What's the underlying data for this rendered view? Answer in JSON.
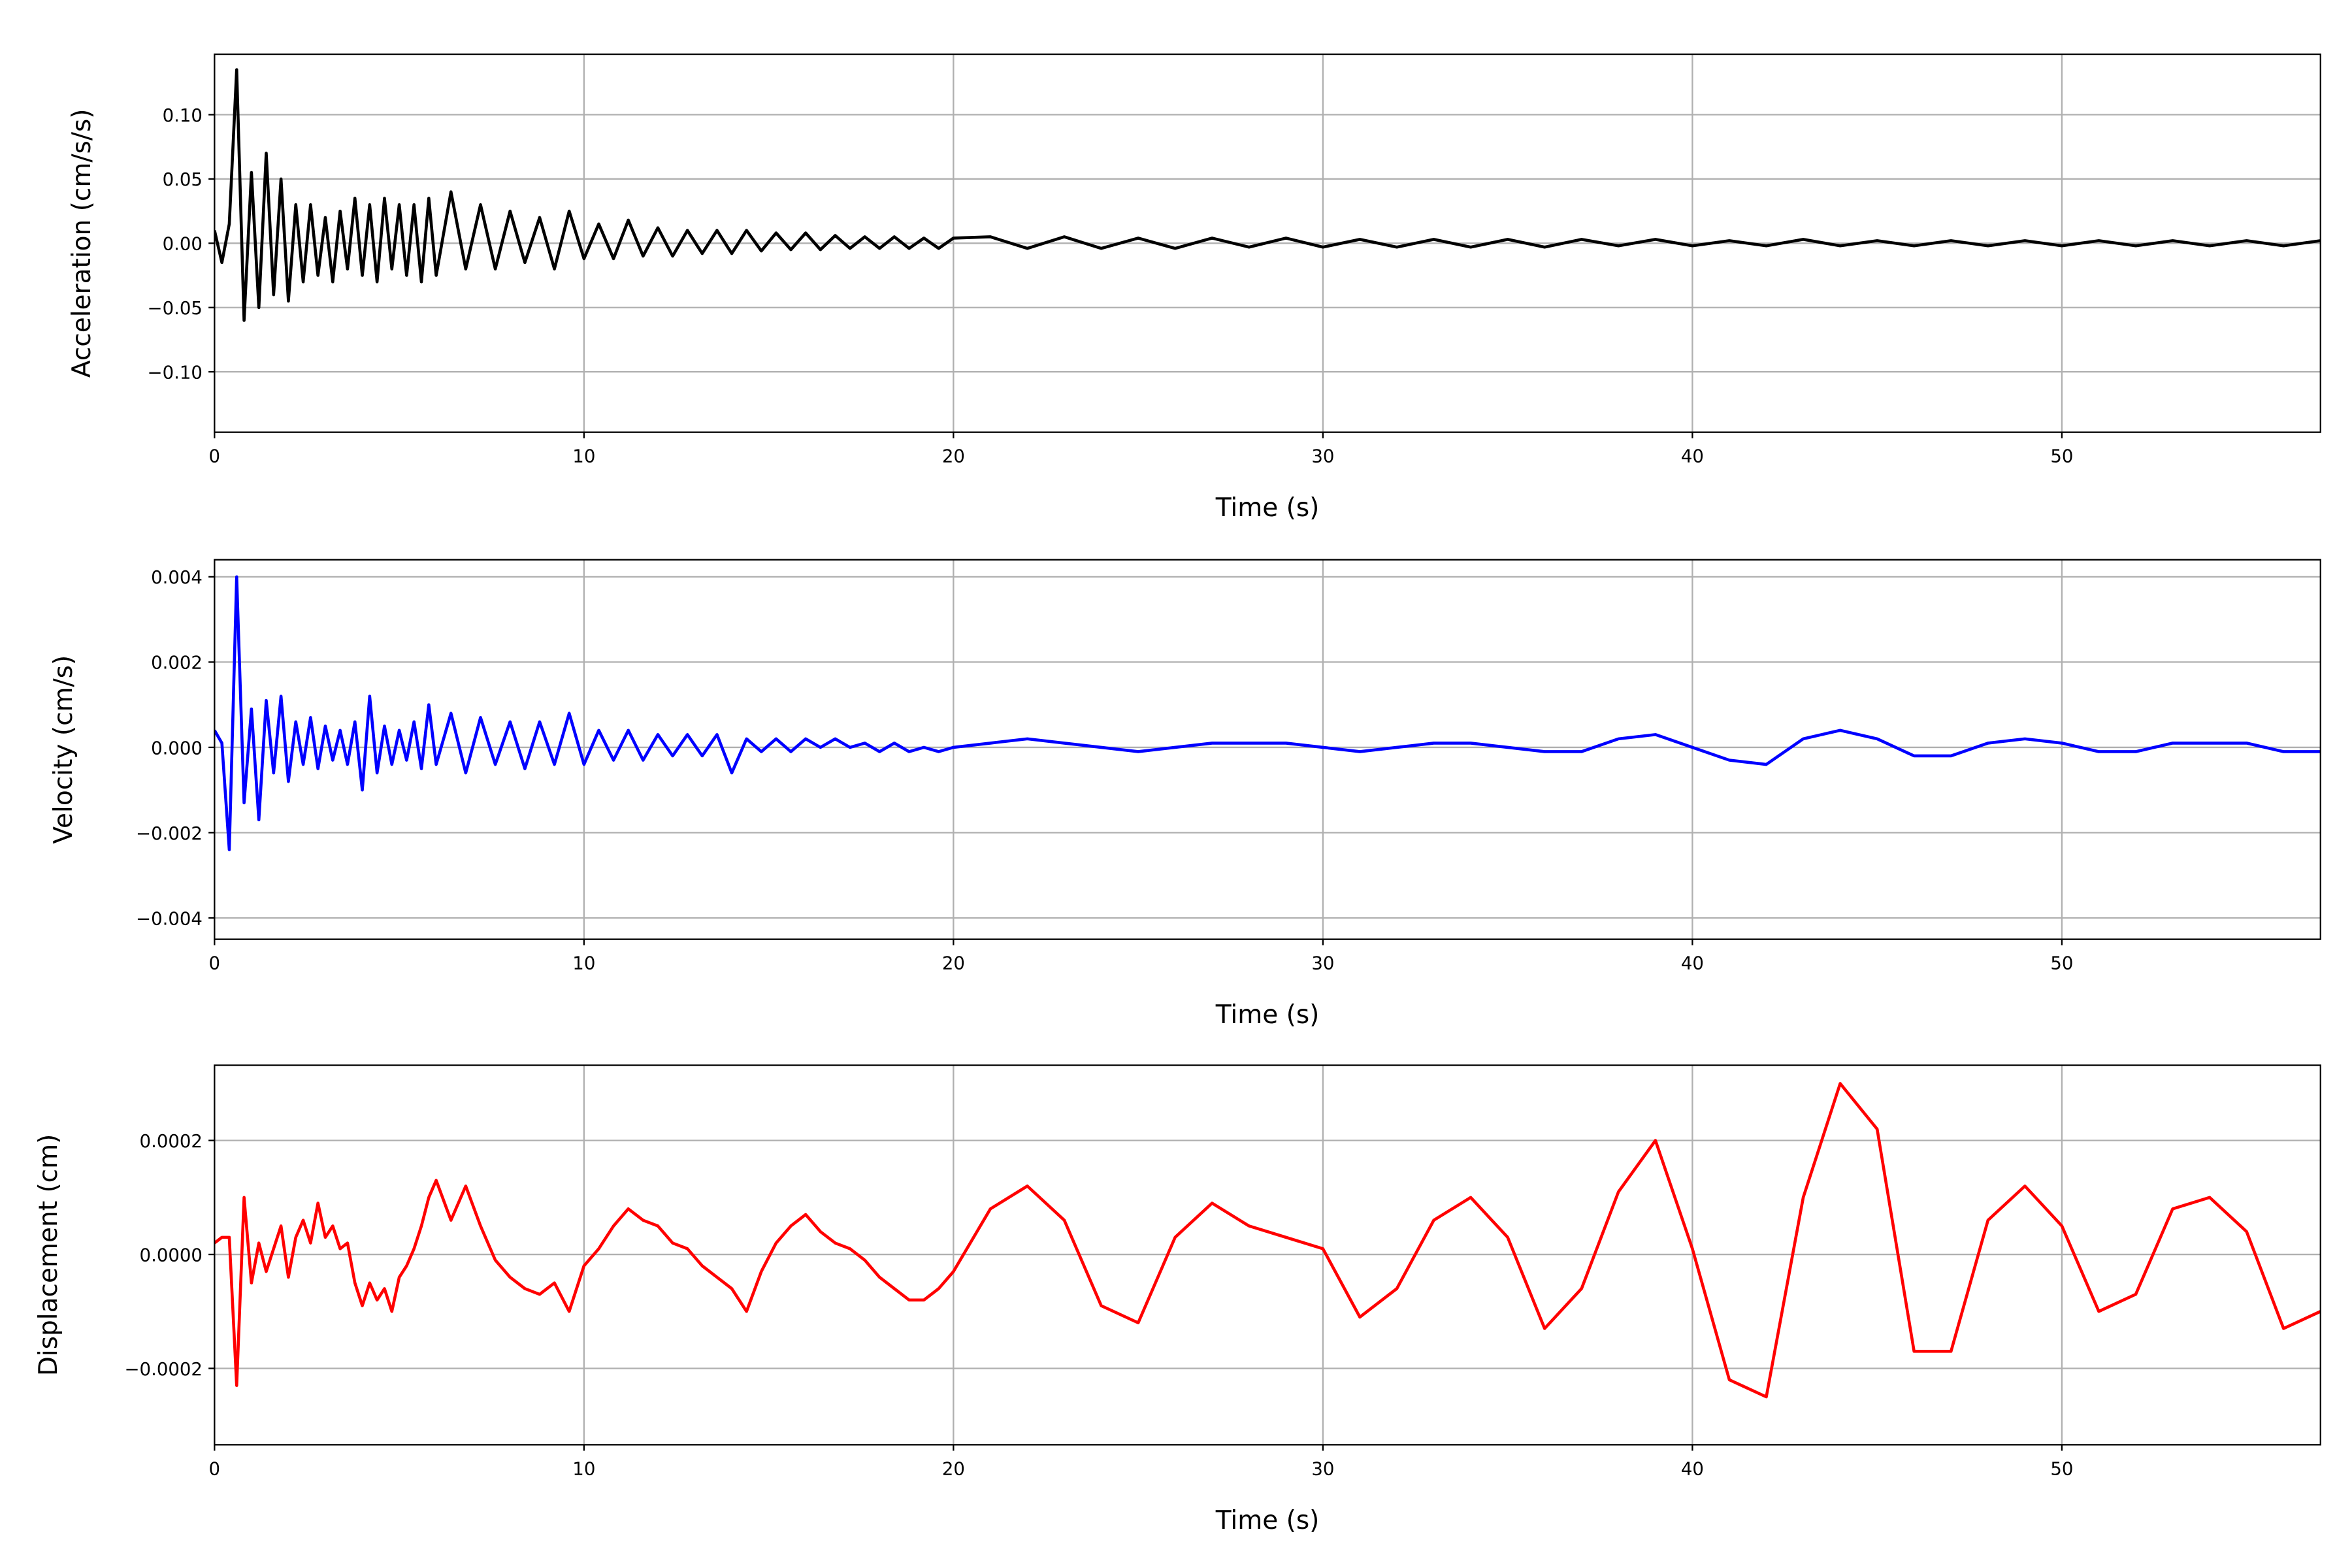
{
  "chart_data": [
    {
      "type": "line",
      "xlabel": "Time (s)",
      "ylabel": "Acceleration (cm/s/s)",
      "color": "#000000",
      "grid": true,
      "xlim": [
        0,
        57
      ],
      "xticks": [
        0,
        10,
        20,
        30,
        40,
        50
      ],
      "ylim": [
        -0.147,
        0.147
      ],
      "yticks": [
        {
          "value": -0.1,
          "label": "−0.10"
        },
        {
          "value": -0.05,
          "label": "−0.05"
        },
        {
          "value": 0,
          "label": "0.00"
        },
        {
          "value": 0.05,
          "label": "0.05"
        },
        {
          "value": 0.1,
          "label": "0.10"
        }
      ],
      "x": [
        0,
        0.2,
        0.4,
        0.6,
        0.8,
        1.0,
        1.2,
        1.4,
        1.6,
        1.8,
        2.0,
        2.2,
        2.4,
        2.6,
        2.8,
        3.0,
        3.2,
        3.4,
        3.6,
        3.8,
        4.0,
        4.2,
        4.4,
        4.6,
        4.8,
        5.0,
        5.2,
        5.4,
        5.6,
        5.8,
        6.0,
        6.4,
        6.8,
        7.2,
        7.6,
        8.0,
        8.4,
        8.8,
        9.2,
        9.6,
        10.0,
        10.4,
        10.8,
        11.2,
        11.6,
        12.0,
        12.4,
        12.8,
        13.2,
        13.6,
        14.0,
        14.4,
        14.8,
        15.2,
        15.6,
        16.0,
        16.4,
        16.8,
        17.2,
        17.6,
        18.0,
        18.4,
        18.8,
        19.2,
        19.6,
        20.0,
        21,
        22,
        23,
        24,
        25,
        26,
        27,
        28,
        29,
        30,
        31,
        32,
        33,
        34,
        35,
        36,
        37,
        38,
        39,
        40,
        41,
        42,
        43,
        44,
        45,
        46,
        47,
        48,
        49,
        50,
        51,
        52,
        53,
        54,
        55,
        56,
        57
      ],
      "values": [
        0.01,
        -0.015,
        0.015,
        0.135,
        -0.06,
        0.055,
        -0.05,
        0.07,
        -0.04,
        0.05,
        -0.045,
        0.03,
        -0.03,
        0.03,
        -0.025,
        0.02,
        -0.03,
        0.025,
        -0.02,
        0.035,
        -0.025,
        0.03,
        -0.03,
        0.035,
        -0.02,
        0.03,
        -0.025,
        0.03,
        -0.03,
        0.035,
        -0.025,
        0.04,
        -0.02,
        0.03,
        -0.02,
        0.025,
        -0.015,
        0.02,
        -0.02,
        0.025,
        -0.012,
        0.015,
        -0.012,
        0.018,
        -0.01,
        0.012,
        -0.01,
        0.01,
        -0.008,
        0.01,
        -0.008,
        0.01,
        -0.006,
        0.008,
        -0.005,
        0.008,
        -0.005,
        0.006,
        -0.004,
        0.005,
        -0.004,
        0.005,
        -0.004,
        0.004,
        -0.004,
        0.004,
        0.005,
        -0.004,
        0.005,
        -0.004,
        0.004,
        -0.004,
        0.004,
        -0.003,
        0.004,
        -0.003,
        0.003,
        -0.003,
        0.003,
        -0.003,
        0.003,
        -0.003,
        0.003,
        -0.002,
        0.003,
        -0.002,
        0.002,
        -0.002,
        0.003,
        -0.002,
        0.002,
        -0.002,
        0.002,
        -0.002,
        0.002,
        -0.002,
        0.002,
        -0.002,
        0.002,
        -0.002,
        0.002,
        -0.002,
        0.002
      ]
    },
    {
      "type": "line",
      "xlabel": "Time (s)",
      "ylabel": "Velocity (cm/s)",
      "color": "#0000ff",
      "grid": true,
      "xlim": [
        0,
        57
      ],
      "xticks": [
        0,
        10,
        20,
        30,
        40,
        50
      ],
      "ylim": [
        -0.0045,
        0.0044
      ],
      "yticks": [
        {
          "value": -0.004,
          "label": "−0.004"
        },
        {
          "value": -0.002,
          "label": "−0.002"
        },
        {
          "value": 0,
          "label": "0.000"
        },
        0.002,
        0.004
      ],
      "x": [
        0,
        0.2,
        0.4,
        0.6,
        0.8,
        1.0,
        1.2,
        1.4,
        1.6,
        1.8,
        2.0,
        2.2,
        2.4,
        2.6,
        2.8,
        3.0,
        3.2,
        3.4,
        3.6,
        3.8,
        4.0,
        4.2,
        4.4,
        4.6,
        4.8,
        5.0,
        5.2,
        5.4,
        5.6,
        5.8,
        6.0,
        6.4,
        6.8,
        7.2,
        7.6,
        8.0,
        8.4,
        8.8,
        9.2,
        9.6,
        10.0,
        10.4,
        10.8,
        11.2,
        11.6,
        12.0,
        12.4,
        12.8,
        13.2,
        13.6,
        14.0,
        14.4,
        14.8,
        15.2,
        15.6,
        16.0,
        16.4,
        16.8,
        17.2,
        17.6,
        18.0,
        18.4,
        18.8,
        19.2,
        19.6,
        20.0,
        21,
        22,
        23,
        24,
        25,
        26,
        27,
        28,
        29,
        30,
        31,
        32,
        33,
        34,
        35,
        36,
        37,
        38,
        39,
        40,
        41,
        42,
        43,
        44,
        45,
        46,
        47,
        48,
        49,
        50,
        51,
        52,
        53,
        54,
        55,
        56,
        57
      ],
      "values": [
        0.0004,
        0.0001,
        -0.0024,
        0.004,
        -0.0013,
        0.0009,
        -0.0017,
        0.0011,
        -0.0006,
        0.0012,
        -0.0008,
        0.0006,
        -0.0004,
        0.0007,
        -0.0005,
        0.0005,
        -0.0003,
        0.0004,
        -0.0004,
        0.0006,
        -0.001,
        0.0012,
        -0.0006,
        0.0005,
        -0.0004,
        0.0004,
        -0.0003,
        0.0006,
        -0.0005,
        0.001,
        -0.0004,
        0.0008,
        -0.0006,
        0.0007,
        -0.0004,
        0.0006,
        -0.0005,
        0.0006,
        -0.0004,
        0.0008,
        -0.0004,
        0.0004,
        -0.0003,
        0.0004,
        -0.0003,
        0.0003,
        -0.0002,
        0.0003,
        -0.0002,
        0.0003,
        -0.0006,
        0.0002,
        -0.0001,
        0.0002,
        -0.0001,
        0.0002,
        0,
        0.0002,
        0,
        0.0001,
        -0.0001,
        0.0001,
        -0.0001,
        0,
        -0.0001,
        0,
        0.0001,
        0.0002,
        0.0001,
        0,
        -0.0001,
        0,
        0.0001,
        0.0001,
        0.0001,
        0,
        -0.0001,
        0,
        0.0001,
        0.0001,
        0,
        -0.0001,
        -0.0001,
        0.0002,
        0.0003,
        0,
        -0.0003,
        -0.0004,
        0.0002,
        0.0004,
        0.0002,
        -0.0002,
        -0.0002,
        0.0001,
        0.0002,
        0.0001,
        -0.0001,
        -0.0001,
        0.0001,
        0.0001,
        0.0001,
        -0.0001,
        -0.0001
      ]
    },
    {
      "type": "line",
      "xlabel": "Time (s)",
      "ylabel": "Displacement (cm)",
      "color": "#ff0000",
      "grid": true,
      "xlim": [
        0,
        57
      ],
      "xticks": [
        0,
        10,
        20,
        30,
        40,
        50
      ],
      "ylim": [
        -0.000334,
        0.000332
      ],
      "yticks": [
        {
          "value": -0.0002,
          "label": "−0.0002"
        },
        {
          "value": 0,
          "label": "0.0000"
        },
        0.0002
      ],
      "x": [
        0,
        0.2,
        0.4,
        0.6,
        0.8,
        1.0,
        1.2,
        1.4,
        1.6,
        1.8,
        2.0,
        2.2,
        2.4,
        2.6,
        2.8,
        3.0,
        3.2,
        3.4,
        3.6,
        3.8,
        4.0,
        4.2,
        4.4,
        4.6,
        4.8,
        5.0,
        5.2,
        5.4,
        5.6,
        5.8,
        6.0,
        6.4,
        6.8,
        7.2,
        7.6,
        8.0,
        8.4,
        8.8,
        9.2,
        9.6,
        10.0,
        10.4,
        10.8,
        11.2,
        11.6,
        12.0,
        12.4,
        12.8,
        13.2,
        13.6,
        14.0,
        14.4,
        14.8,
        15.2,
        15.6,
        16.0,
        16.4,
        16.8,
        17.2,
        17.6,
        18.0,
        18.4,
        18.8,
        19.2,
        19.6,
        20.0,
        21,
        22,
        23,
        24,
        25,
        26,
        27,
        28,
        29,
        30,
        31,
        32,
        33,
        34,
        35,
        36,
        37,
        38,
        39,
        40,
        41,
        42,
        43,
        44,
        45,
        46,
        47,
        48,
        49,
        50,
        51,
        52,
        53,
        54,
        55,
        56,
        57
      ],
      "values": [
        2e-05,
        3e-05,
        3e-05,
        -0.00023,
        0.0001,
        -5e-05,
        2e-05,
        -3e-05,
        1e-05,
        5e-05,
        -4e-05,
        3e-05,
        6e-05,
        2e-05,
        9e-05,
        3e-05,
        5e-05,
        1e-05,
        2e-05,
        -5e-05,
        -9e-05,
        -5e-05,
        -8e-05,
        -6e-05,
        -0.0001,
        -4e-05,
        -2e-05,
        1e-05,
        5e-05,
        0.0001,
        0.00013,
        6e-05,
        0.00012,
        5e-05,
        -1e-05,
        -4e-05,
        -6e-05,
        -7e-05,
        -5e-05,
        -0.0001,
        -2e-05,
        1e-05,
        5e-05,
        8e-05,
        6e-05,
        5e-05,
        2e-05,
        1e-05,
        -2e-05,
        -4e-05,
        -6e-05,
        -0.0001,
        -3e-05,
        2e-05,
        5e-05,
        7e-05,
        4e-05,
        2e-05,
        1e-05,
        -1e-05,
        -4e-05,
        -6e-05,
        -8e-05,
        -8e-05,
        -6e-05,
        -3e-05,
        8e-05,
        0.00012,
        6e-05,
        -9e-05,
        -0.00012,
        3e-05,
        9e-05,
        5e-05,
        3e-05,
        1e-05,
        -0.00011,
        -6e-05,
        6e-05,
        0.0001,
        3e-05,
        -0.00013,
        -6e-05,
        0.00011,
        0.0002,
        1e-05,
        -0.00022,
        -0.00025,
        0.0001,
        0.0003,
        0.00022,
        -0.00017,
        -0.00017,
        6e-05,
        0.00012,
        5e-05,
        -0.0001,
        -7e-05,
        8e-05,
        0.0001,
        4e-05,
        -0.00013,
        -0.0001
      ]
    }
  ]
}
